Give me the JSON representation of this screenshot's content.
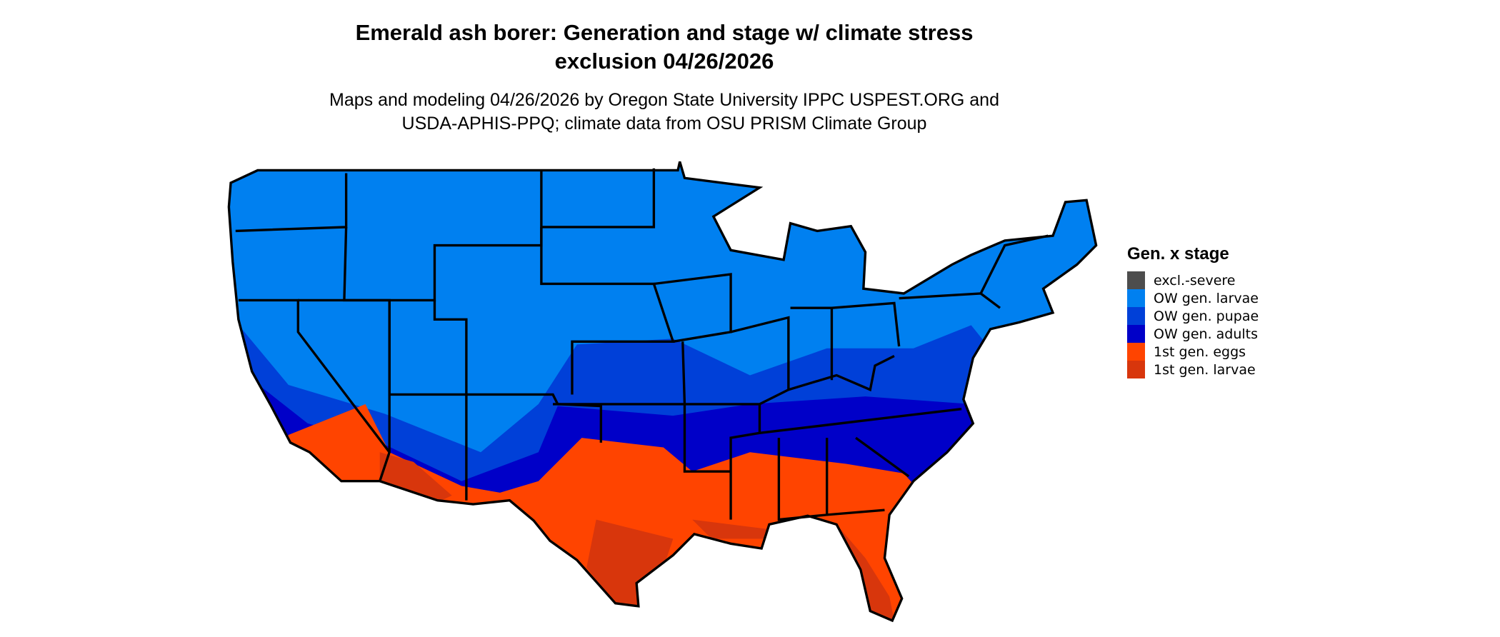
{
  "header": {
    "title_line1": "Emerald ash borer: Generation and stage w/ climate stress",
    "title_line2": "exclusion 04/26/2026",
    "subtitle_line1": "Maps and modeling 04/26/2026 by Oregon State University IPPC USPEST.ORG and",
    "subtitle_line2": "USDA-APHIS-PPQ; climate data from OSU PRISM Climate Group"
  },
  "legend": {
    "title": "Gen. x stage",
    "items": [
      {
        "label": "excl.-severe",
        "color": "#4d4d4d"
      },
      {
        "label": "OW gen. larvae",
        "color": "#0080f0"
      },
      {
        "label": "OW gen. pupae",
        "color": "#0040d8"
      },
      {
        "label": "OW gen. adults",
        "color": "#0000c8"
      },
      {
        "label": "1st gen. eggs",
        "color": "#ff4400"
      },
      {
        "label": "1st gen. larvae",
        "color": "#d8360c"
      }
    ]
  }
}
